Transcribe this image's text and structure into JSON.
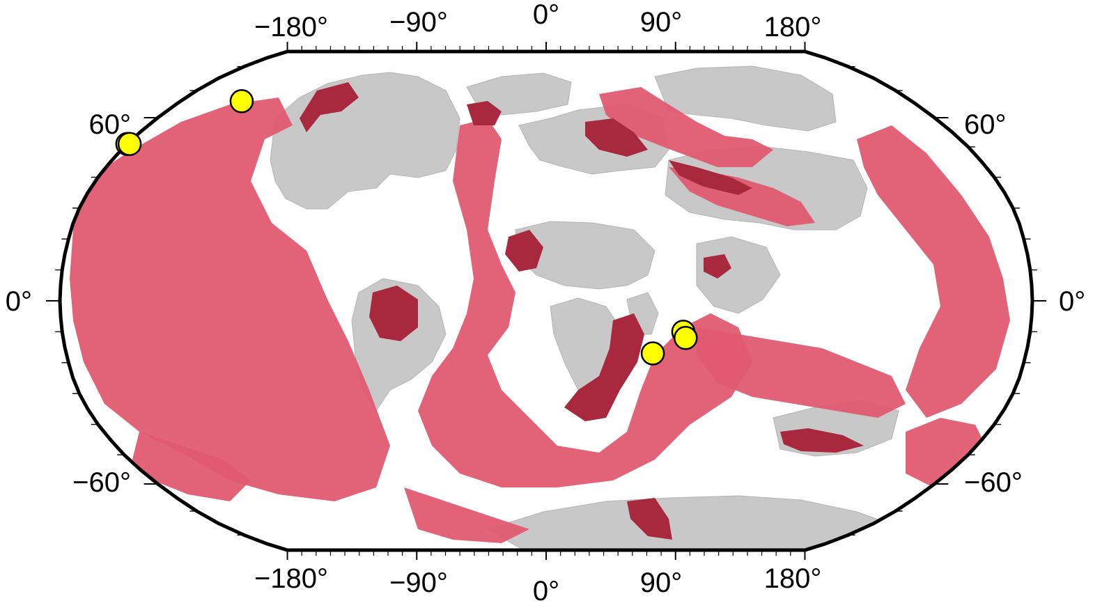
{
  "map": {
    "projection": "Robinson",
    "colors": {
      "background": "#ffffff",
      "continent": "#c8c8c8",
      "continent_line": "#b4b4b4",
      "region_light": "#e05a70",
      "region_dark": "#a8283e",
      "marker_fill": "#ffff00",
      "marker_stroke": "#000000",
      "frame": "#000000"
    },
    "longitude_labels": [
      {
        "lon": -180,
        "text": "−180°"
      },
      {
        "lon": -90,
        "text": "−90°"
      },
      {
        "lon": 0,
        "text": "0°"
      },
      {
        "lon": 90,
        "text": "90°"
      },
      {
        "lon": 180,
        "text": "180°"
      }
    ],
    "latitude_labels": [
      {
        "lat": 60,
        "text": "60°"
      },
      {
        "lat": 0,
        "text": "0°"
      },
      {
        "lat": -60,
        "text": "−60°"
      }
    ],
    "markers": [
      {
        "lon": -150,
        "lat": 66
      },
      {
        "lon": -180,
        "lat": 51
      },
      {
        "lon": -179,
        "lat": 51
      },
      {
        "lon": 51,
        "lat": -10
      },
      {
        "lon": 52,
        "lat": -12
      },
      {
        "lon": 40,
        "lat": -17
      }
    ]
  }
}
